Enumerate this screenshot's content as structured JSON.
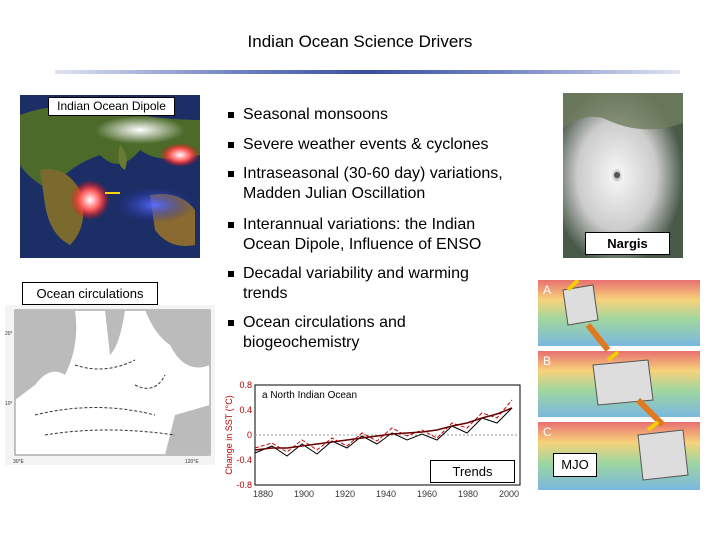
{
  "title": "Indian Ocean Science Drivers",
  "bullets": [
    [
      "Seasonal monsoons"
    ],
    [
      "Severe weather events & cyclones"
    ],
    [
      "Intraseasonal (30-60 day) variations,",
      "Madden Julian Oscillation"
    ],
    [
      "Interannual variations: the Indian",
      "Ocean Dipole, Influence of ENSO"
    ],
    [
      "Decadal variability and warming",
      "trends"
    ],
    [
      "Ocean circulations and",
      "biogeochemistry"
    ]
  ],
  "labels": {
    "dipole": "Indian Ocean Dipole",
    "circulations": "Ocean circulations",
    "nargis": "Nargis",
    "trends": "Trends",
    "mjo": "MJO"
  },
  "sst_plot": {
    "title": "a North Indian Ocean",
    "ylabel": "Change in SST (°C)",
    "yticks": [
      "0.8",
      "0.4",
      "0",
      "-0.4",
      "-0.8"
    ],
    "xticks": [
      "1880",
      "1900",
      "1920",
      "1940",
      "1960",
      "1980",
      "2000"
    ]
  },
  "mjo_panels": [
    "A",
    "B",
    "C"
  ]
}
